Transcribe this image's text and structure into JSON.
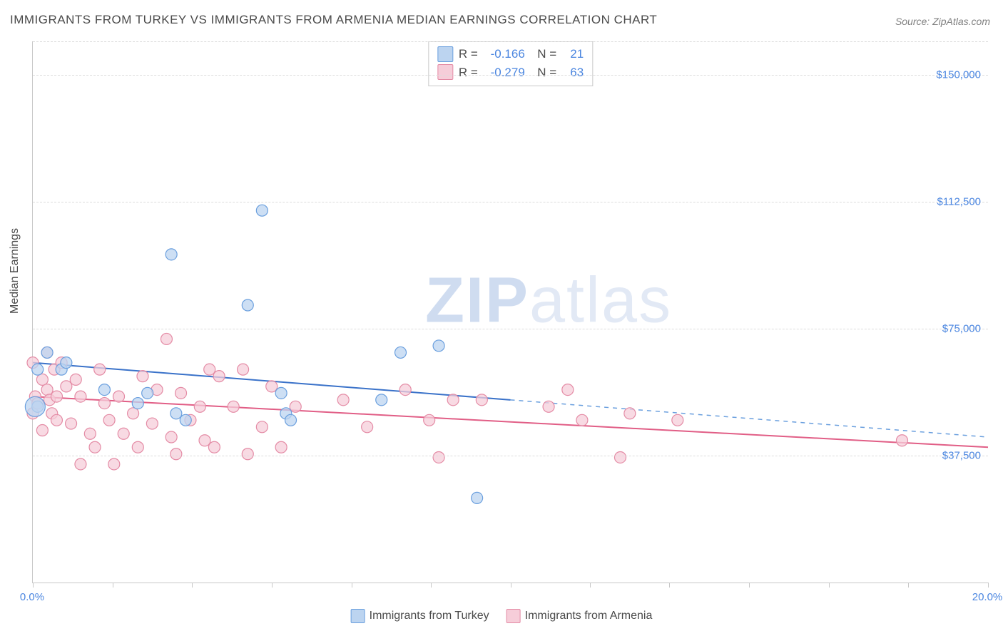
{
  "title": "IMMIGRANTS FROM TURKEY VS IMMIGRANTS FROM ARMENIA MEDIAN EARNINGS CORRELATION CHART",
  "source": "Source: ZipAtlas.com",
  "watermark_bold": "ZIP",
  "watermark_rest": "atlas",
  "ylabel": "Median Earnings",
  "chart": {
    "type": "scatter",
    "background_color": "#ffffff",
    "grid_color": "#dcdcdc",
    "axis_color": "#c8c8c8",
    "tick_label_color": "#4b86e0",
    "xlim": [
      0,
      20
    ],
    "ylim": [
      0,
      160000
    ],
    "x_unit": "%",
    "y_format": "currency",
    "yticks": [
      37500,
      75000,
      112500,
      150000
    ],
    "ytick_labels": [
      "$37,500",
      "$75,000",
      "$112,500",
      "$150,000"
    ],
    "xtick_positions": [
      0,
      1.67,
      3.33,
      5.0,
      6.67,
      8.33,
      10.0,
      11.67,
      13.33,
      15.0,
      16.67,
      18.33,
      20.0
    ],
    "xtick_labels": {
      "0": "0.0%",
      "20": "20.0%"
    },
    "marker_radius": 8,
    "marker_stroke_width": 1.2,
    "line_width": 2,
    "series": [
      {
        "id": "turkey",
        "label": "Immigrants from Turkey",
        "fill": "#bcd4f0",
        "stroke": "#6a9fde",
        "line_color": "#3a72c9",
        "R": "-0.166",
        "N": "21",
        "trend_solid": {
          "x1": 0,
          "y1": 65000,
          "x2": 10,
          "y2": 54000
        },
        "trend_dash": {
          "x1": 10,
          "y1": 54000,
          "x2": 20,
          "y2": 43000
        },
        "points": [
          [
            0.1,
            63000
          ],
          [
            0.1,
            52000
          ],
          [
            0.05,
            52000,
            14
          ],
          [
            0.3,
            68000
          ],
          [
            0.6,
            63000
          ],
          [
            0.7,
            65000
          ],
          [
            1.5,
            57000
          ],
          [
            2.2,
            53000
          ],
          [
            2.4,
            56000
          ],
          [
            2.9,
            97000
          ],
          [
            3.0,
            50000
          ],
          [
            3.2,
            48000
          ],
          [
            4.5,
            82000
          ],
          [
            4.8,
            110000
          ],
          [
            5.2,
            56000
          ],
          [
            5.3,
            50000
          ],
          [
            5.4,
            48000
          ],
          [
            7.3,
            54000
          ],
          [
            7.7,
            68000
          ],
          [
            8.5,
            70000
          ],
          [
            9.3,
            25000
          ]
        ]
      },
      {
        "id": "armenia",
        "label": "Immigrants from Armenia",
        "fill": "#f6cdd9",
        "stroke": "#e48ba5",
        "line_color": "#e15e86",
        "R": "-0.279",
        "N": "63",
        "trend_solid": {
          "x1": 0,
          "y1": 55000,
          "x2": 20,
          "y2": 40000
        },
        "trend_dash": null,
        "points": [
          [
            0.0,
            50000
          ],
          [
            0.0,
            65000
          ],
          [
            0.05,
            55000
          ],
          [
            0.1,
            53000
          ],
          [
            0.2,
            60000
          ],
          [
            0.2,
            45000
          ],
          [
            0.3,
            68000
          ],
          [
            0.3,
            57000
          ],
          [
            0.35,
            54000
          ],
          [
            0.4,
            50000
          ],
          [
            0.45,
            63000
          ],
          [
            0.5,
            55000
          ],
          [
            0.5,
            48000
          ],
          [
            0.6,
            65000
          ],
          [
            0.7,
            58000
          ],
          [
            0.8,
            47000
          ],
          [
            0.9,
            60000
          ],
          [
            1.0,
            55000
          ],
          [
            1.0,
            35000
          ],
          [
            1.2,
            44000
          ],
          [
            1.3,
            40000
          ],
          [
            1.4,
            63000
          ],
          [
            1.5,
            53000
          ],
          [
            1.6,
            48000
          ],
          [
            1.7,
            35000
          ],
          [
            1.8,
            55000
          ],
          [
            1.9,
            44000
          ],
          [
            2.1,
            50000
          ],
          [
            2.2,
            40000
          ],
          [
            2.3,
            61000
          ],
          [
            2.5,
            47000
          ],
          [
            2.6,
            57000
          ],
          [
            2.8,
            72000
          ],
          [
            2.9,
            43000
          ],
          [
            3.0,
            38000
          ],
          [
            3.1,
            56000
          ],
          [
            3.3,
            48000
          ],
          [
            3.5,
            52000
          ],
          [
            3.6,
            42000
          ],
          [
            3.7,
            63000
          ],
          [
            3.8,
            40000
          ],
          [
            3.9,
            61000
          ],
          [
            4.2,
            52000
          ],
          [
            4.4,
            63000
          ],
          [
            4.5,
            38000
          ],
          [
            4.8,
            46000
          ],
          [
            5.0,
            58000
          ],
          [
            5.2,
            40000
          ],
          [
            5.5,
            52000
          ],
          [
            6.5,
            54000
          ],
          [
            7.0,
            46000
          ],
          [
            7.8,
            57000
          ],
          [
            8.3,
            48000
          ],
          [
            8.5,
            37000
          ],
          [
            8.8,
            54000
          ],
          [
            9.4,
            54000
          ],
          [
            10.8,
            52000
          ],
          [
            11.2,
            57000
          ],
          [
            11.5,
            48000
          ],
          [
            12.3,
            37000
          ],
          [
            12.5,
            50000
          ],
          [
            13.5,
            48000
          ],
          [
            18.2,
            42000
          ]
        ]
      }
    ]
  }
}
